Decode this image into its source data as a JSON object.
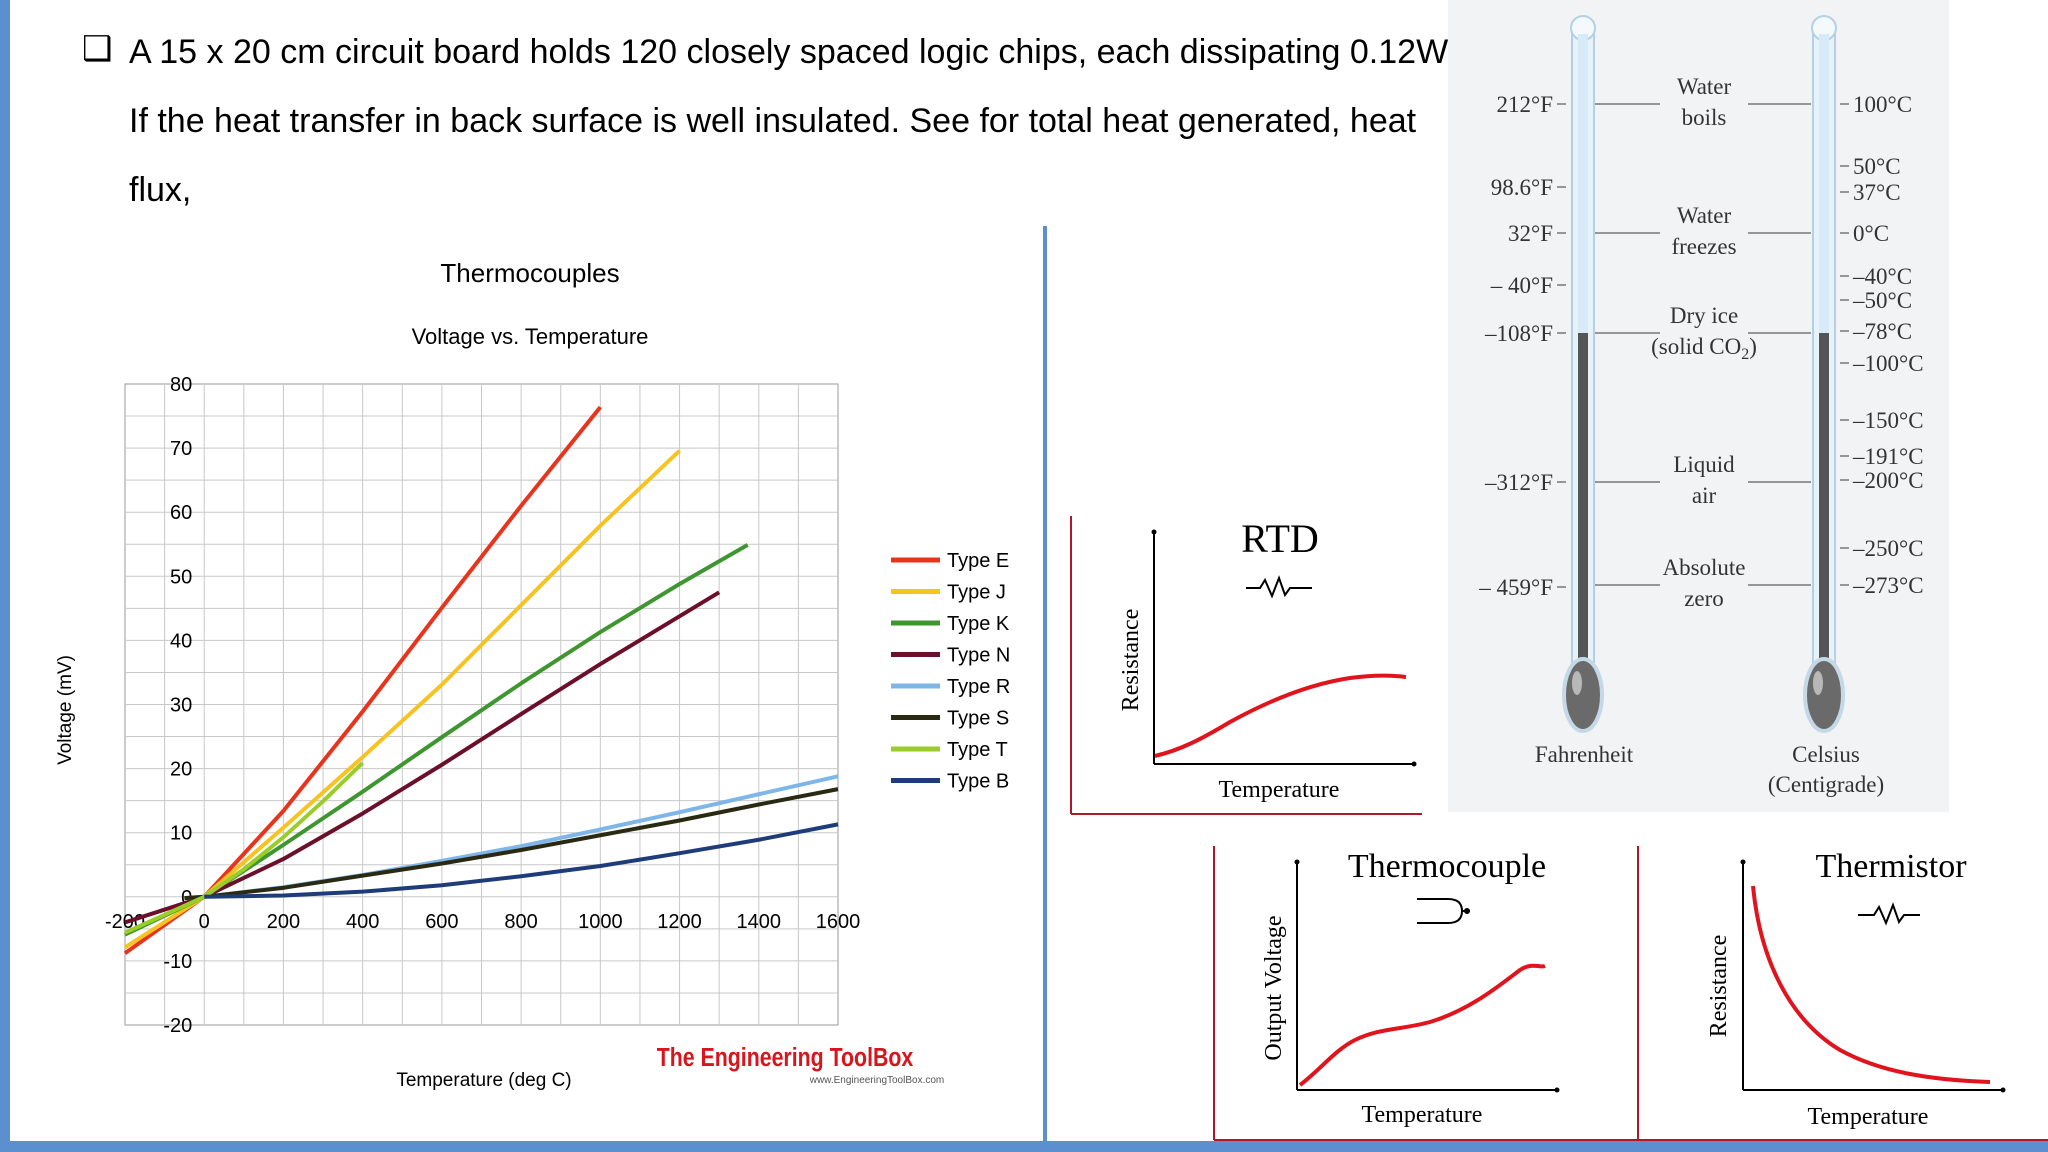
{
  "problem": {
    "line1": "A 15 x 20 cm circuit board holds 120 closely spaced logic chips, each dissipating 0.12W.",
    "line2": "If the heat transfer in back surface is well insulated. See for total heat generated, heat",
    "line3": "flux,"
  },
  "chart_data": [
    {
      "type": "line",
      "title": "Thermocouples",
      "subtitle": "Voltage vs. Temperature",
      "xlabel": "Temperature (deg C)",
      "ylabel": "Voltage (mV)",
      "xlim": [
        -200,
        1600
      ],
      "ylim": [
        -20,
        80
      ],
      "x_ticks": [
        "-200",
        "0",
        "200",
        "400",
        "600",
        "800",
        "1000",
        "1200",
        "1400",
        "1600"
      ],
      "y_ticks": [
        "80",
        "70",
        "60",
        "50",
        "40",
        "30",
        "20",
        "10",
        "0",
        "-10",
        "-20"
      ],
      "grid": true,
      "legend_position": "right",
      "series": [
        {
          "name": "Type E",
          "color": "#e8341c",
          "x": [
            -200,
            0,
            200,
            400,
            600,
            800,
            1000
          ],
          "y": [
            -8.8,
            0,
            13.4,
            28.9,
            45.1,
            61.0,
            76.4
          ]
        },
        {
          "name": "Type J",
          "color": "#f6c320",
          "x": [
            -200,
            0,
            200,
            400,
            600,
            800,
            1000,
            1200
          ],
          "y": [
            -7.9,
            0,
            10.8,
            21.8,
            33.1,
            45.5,
            57.9,
            69.6
          ]
        },
        {
          "name": "Type K",
          "color": "#3f9630",
          "x": [
            -200,
            0,
            200,
            400,
            600,
            800,
            1000,
            1200,
            1372
          ],
          "y": [
            -5.9,
            0,
            8.1,
            16.4,
            24.9,
            33.3,
            41.3,
            48.8,
            54.9
          ]
        },
        {
          "name": "Type N",
          "color": "#6b0f2a",
          "x": [
            -200,
            0,
            200,
            400,
            600,
            800,
            1000,
            1300
          ],
          "y": [
            -3.99,
            0,
            5.9,
            13.0,
            20.6,
            28.5,
            36.3,
            47.5
          ]
        },
        {
          "name": "Type R",
          "color": "#7fb6ea",
          "x": [
            -50,
            0,
            200,
            400,
            600,
            800,
            1000,
            1200,
            1400,
            1600
          ],
          "y": [
            -0.2,
            0,
            1.5,
            3.4,
            5.6,
            7.9,
            10.5,
            13.2,
            16.0,
            18.8
          ]
        },
        {
          "name": "Type S",
          "color": "#2a2a12",
          "x": [
            -50,
            0,
            200,
            400,
            600,
            800,
            1000,
            1200,
            1400,
            1600
          ],
          "y": [
            -0.2,
            0,
            1.4,
            3.3,
            5.2,
            7.3,
            9.6,
            11.9,
            14.4,
            16.8
          ]
        },
        {
          "name": "Type T",
          "color": "#9acd2a",
          "x": [
            -200,
            0,
            100,
            200,
            300,
            400
          ],
          "y": [
            -5.6,
            0,
            4.3,
            9.3,
            14.9,
            20.9
          ]
        },
        {
          "name": "Type B",
          "color": "#1f3c7a",
          "x": [
            0,
            200,
            400,
            600,
            800,
            1000,
            1200,
            1400,
            1600
          ],
          "y": [
            0,
            0.2,
            0.8,
            1.8,
            3.2,
            4.8,
            6.8,
            8.9,
            11.3
          ]
        }
      ],
      "watermark": "The Engineering ToolBox",
      "watermark_url": "www.EngineeringToolBox.com"
    },
    {
      "type": "line",
      "title": "RTD",
      "xlabel": "Temperature",
      "ylabel": "Resistance",
      "shape": "s-curve rising then leveling"
    },
    {
      "type": "line",
      "title": "Thermocouple",
      "xlabel": "Temperature",
      "ylabel": "Output Voltage",
      "shape": "rising wavy curve"
    },
    {
      "type": "line",
      "title": "Thermistor",
      "xlabel": "Temperature",
      "ylabel": "Resistance",
      "shape": "decaying curve"
    }
  ],
  "thermometer": {
    "left_label": "Fahrenheit",
    "right_label_1": "Celsius",
    "right_label_2": "(Centigrade)",
    "fahrenheit_marks": [
      "212°F",
      "98.6°F",
      "32°F",
      "– 40°F",
      "–108°F",
      "–312°F",
      "– 459°F"
    ],
    "celsius_marks": [
      "100°C",
      "50°C",
      "37°C",
      "0°C",
      "–40°C",
      "–50°C",
      "–78°C",
      "–100°C",
      "–150°C",
      "–191°C",
      "–200°C",
      "–250°C",
      "–273°C"
    ],
    "events": [
      {
        "line1": "Water",
        "line2": "boils"
      },
      {
        "line1": "Water",
        "line2": "freezes"
      },
      {
        "line1": "Dry ice",
        "line2": "(solid CO",
        "sub": "2",
        "tail": ")"
      },
      {
        "line1": "Liquid",
        "line2": "air"
      },
      {
        "line1": "Absolute",
        "line2": "zero"
      }
    ]
  },
  "colors": {
    "accent": "#5b8fd0",
    "curve": "#e0141c",
    "panel_border": "#b0182a"
  }
}
